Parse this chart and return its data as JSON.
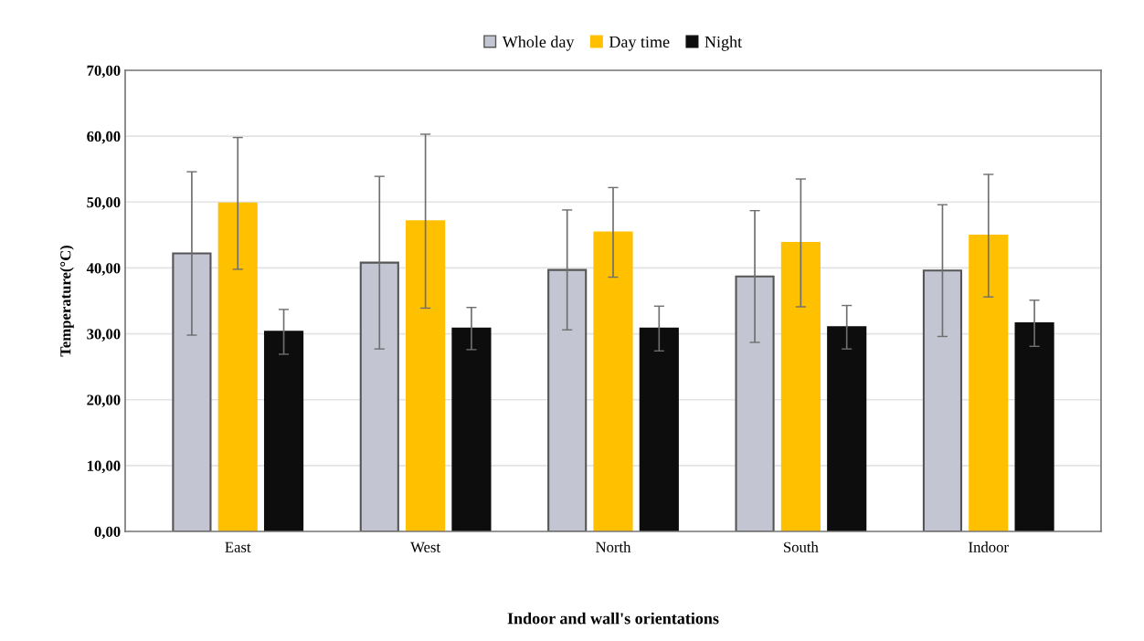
{
  "chart_data": {
    "type": "bar",
    "xlabel": "Indoor and wall's orientations",
    "ylabel": "Temperature(°C)",
    "categories": [
      "East",
      "West",
      "North",
      "South",
      "Indoor"
    ],
    "series": [
      {
        "name": "Whole day",
        "color": "#c3c5d3",
        "values": [
          42.2,
          40.8,
          39.7,
          38.7,
          39.6
        ],
        "errors": [
          12.4,
          13.1,
          9.1,
          10.0,
          10.0
        ]
      },
      {
        "name": "Day time",
        "color": "#ffc000",
        "values": [
          49.8,
          47.1,
          45.4,
          43.8,
          44.9
        ],
        "errors": [
          10.0,
          13.2,
          6.8,
          9.7,
          9.3
        ]
      },
      {
        "name": "Night",
        "color": "#0d0d0d",
        "values": [
          30.3,
          30.8,
          30.8,
          31.0,
          31.6
        ],
        "errors": [
          3.4,
          3.2,
          3.4,
          3.3,
          3.5
        ]
      }
    ],
    "ylim": [
      0,
      70
    ],
    "yticks": [
      {
        "value": 0,
        "label": "0,00"
      },
      {
        "value": 10,
        "label": "10,00"
      },
      {
        "value": 20,
        "label": "20,00"
      },
      {
        "value": 30,
        "label": "30,00"
      },
      {
        "value": 40,
        "label": "40,00"
      },
      {
        "value": 50,
        "label": "50,00"
      },
      {
        "value": 60,
        "label": "60,00"
      },
      {
        "value": 70,
        "label": "70,00"
      }
    ],
    "grid": "y",
    "legend": "top"
  }
}
